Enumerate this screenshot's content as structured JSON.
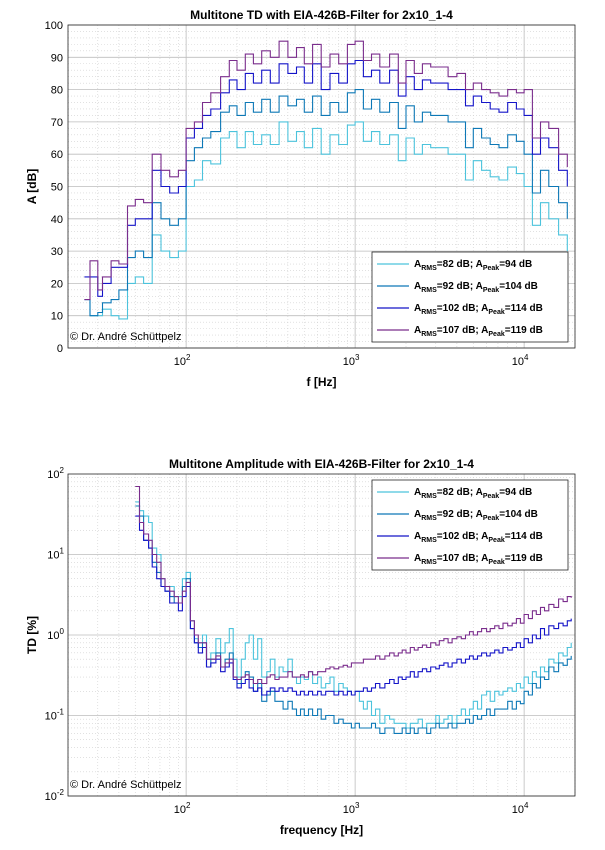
{
  "copyright": "© Dr. André Schüttpelz",
  "colors": {
    "s82": "#4cc3dc",
    "s92": "#0d78b6",
    "s102": "#1414c8",
    "s107": "#7a2d8c"
  },
  "chart_data": [
    {
      "type": "line",
      "title": "Multitone TD with EIA-426B-Filter for 2x10_1-4",
      "xlabel": "f [Hz]",
      "ylabel": "A [dB]",
      "xscale": "log",
      "xlim": [
        20,
        20000
      ],
      "ylim": [
        0,
        100
      ],
      "yticks": [
        0,
        10,
        20,
        30,
        40,
        50,
        60,
        70,
        80,
        90,
        100
      ],
      "xtick_labels": [
        {
          "base": "10",
          "exp": "2"
        },
        {
          "base": "10",
          "exp": "3"
        },
        {
          "base": "10",
          "exp": "4"
        }
      ],
      "grid": true,
      "legend_position": "lower-right",
      "x": [
        25,
        27,
        30,
        32,
        36,
        40,
        45,
        50,
        56,
        63,
        71,
        80,
        90,
        100,
        112,
        125,
        140,
        160,
        180,
        200,
        224,
        250,
        280,
        315,
        355,
        400,
        450,
        500,
        560,
        630,
        710,
        800,
        900,
        1000,
        1120,
        1250,
        1400,
        1600,
        1800,
        2000,
        2240,
        2500,
        2800,
        3150,
        3550,
        4000,
        4500,
        5000,
        5600,
        6300,
        7100,
        8000,
        9000,
        10000,
        11200,
        12500,
        14000,
        16000,
        18000
      ],
      "series": [
        {
          "name": "A_RMS=82 dB; A_Peak=94 dB",
          "legend": {
            "a": "A",
            "s1": "RMS",
            "m": "=82 dB; A",
            "s2": "Peak",
            "e": "=94 dB"
          },
          "color_key": "s82",
          "values": [
            15,
            10,
            10,
            12,
            10,
            9,
            20,
            22,
            20,
            35,
            30,
            28,
            30,
            50,
            52,
            58,
            57,
            65,
            67,
            62,
            67,
            63,
            66,
            63,
            70,
            64,
            67,
            62,
            68,
            60,
            66,
            63,
            69,
            70,
            64,
            67,
            63,
            66,
            58,
            65,
            60,
            63,
            62,
            62,
            60,
            60,
            52,
            58,
            55,
            53,
            52,
            56,
            54,
            50,
            38,
            45,
            40,
            35,
            30
          ]
        },
        {
          "name": "A_RMS=92 dB; A_Peak=104 dB",
          "legend": {
            "a": "A",
            "s1": "RMS",
            "m": "=92 dB; A",
            "s2": "Peak",
            "e": "=104 dB"
          },
          "color_key": "s92",
          "values": [
            15,
            10,
            11,
            14,
            15,
            18,
            28,
            30,
            28,
            45,
            40,
            38,
            40,
            58,
            62,
            65,
            67,
            73,
            75,
            72,
            76,
            73,
            77,
            73,
            78,
            75,
            77,
            73,
            78,
            72,
            76,
            73,
            79,
            80,
            74,
            77,
            73,
            76,
            68,
            75,
            70,
            73,
            72,
            72,
            70,
            70,
            62,
            68,
            65,
            63,
            62,
            66,
            64,
            60,
            48,
            55,
            50,
            45,
            40
          ]
        },
        {
          "name": "A_RMS=102 dB; A_Peak=114 dB",
          "legend": {
            "a": "A",
            "s1": "RMS",
            "m": "=102 dB; A",
            "s2": "Peak",
            "e": "=114 dB"
          },
          "color_key": "s102",
          "values": [
            22,
            22,
            16,
            20,
            25,
            25,
            38,
            40,
            40,
            55,
            50,
            48,
            50,
            65,
            68,
            72,
            74,
            79,
            83,
            80,
            85,
            82,
            86,
            82,
            88,
            85,
            87,
            82,
            88,
            80,
            85,
            82,
            88,
            89,
            84,
            86,
            82,
            86,
            78,
            84,
            80,
            83,
            82,
            82,
            80,
            80,
            75,
            78,
            76,
            74,
            73,
            76,
            74,
            72,
            60,
            65,
            62,
            55,
            50
          ]
        },
        {
          "name": "A_RMS=107 dB; A_Peak=119 dB",
          "legend": {
            "a": "A",
            "s1": "RMS",
            "m": "=107 dB; A",
            "s2": "Peak",
            "e": "=119 dB"
          },
          "color_key": "s107",
          "values": [
            15,
            27,
            18,
            22,
            27,
            26,
            44,
            46,
            45,
            60,
            55,
            53,
            55,
            68,
            70,
            76,
            79,
            84,
            89,
            86,
            91,
            88,
            92,
            90,
            95,
            90,
            93,
            88,
            94,
            87,
            91,
            88,
            94,
            95,
            89,
            91,
            87,
            91,
            82,
            89,
            85,
            88,
            87,
            87,
            84,
            85,
            80,
            82,
            80,
            79,
            78,
            80,
            79,
            80,
            65,
            70,
            68,
            60,
            56
          ]
        }
      ]
    },
    {
      "type": "line",
      "title": "Multitone Amplitude with EIA-426B-Filter for 2x10_1-4",
      "xlabel": "frequency [Hz]",
      "ylabel": "TD [%]",
      "xscale": "log",
      "yscale": "log",
      "xlim": [
        20,
        20000
      ],
      "ylim": [
        0.01,
        100
      ],
      "ytick_labels": [
        {
          "base": "10",
          "exp": "-2"
        },
        {
          "base": "10",
          "exp": "-1"
        },
        {
          "base": "10",
          "exp": "0"
        },
        {
          "base": "10",
          "exp": "1"
        },
        {
          "base": "10",
          "exp": "2"
        }
      ],
      "xtick_labels": [
        {
          "base": "10",
          "exp": "2"
        },
        {
          "base": "10",
          "exp": "3"
        },
        {
          "base": "10",
          "exp": "4"
        }
      ],
      "grid": true,
      "legend_position": "top-right",
      "x": [
        50,
        53,
        56,
        60,
        63,
        67,
        71,
        75,
        80,
        85,
        90,
        95,
        100,
        106,
        112,
        118,
        125,
        132,
        140,
        150,
        160,
        170,
        180,
        190,
        200,
        212,
        224,
        236,
        250,
        265,
        280,
        300,
        315,
        335,
        355,
        375,
        400,
        425,
        450,
        475,
        500,
        530,
        560,
        600,
        630,
        670,
        710,
        750,
        800,
        850,
        900,
        950,
        1000,
        1060,
        1120,
        1180,
        1250,
        1320,
        1400,
        1500,
        1600,
        1700,
        1800,
        1900,
        2000,
        2120,
        2240,
        2360,
        2500,
        2650,
        2800,
        3000,
        3150,
        3350,
        3550,
        3750,
        4000,
        4250,
        4500,
        4750,
        5000,
        5300,
        5600,
        6000,
        6300,
        6700,
        7100,
        7500,
        8000,
        8500,
        9000,
        9500,
        10000,
        10600,
        11200,
        11800,
        12500,
        13200,
        14000,
        15000,
        16000,
        17000,
        18000,
        19000
      ],
      "series": [
        {
          "name": "A_RMS=82 dB; A_Peak=94 dB",
          "legend": {
            "a": "A",
            "s1": "RMS",
            "m": "=82 dB; A",
            "s2": "Peak",
            "e": "=94 dB"
          },
          "color_key": "s82",
          "values": [
            45,
            35,
            30,
            25,
            12,
            10,
            5,
            4,
            4,
            3,
            3,
            5,
            6,
            1.5,
            0.9,
            0.8,
            1,
            0.5,
            0.6,
            0.9,
            0.6,
            0.8,
            1.2,
            0.5,
            0.3,
            0.5,
            0.8,
            1.0,
            0.5,
            0.9,
            0.3,
            0.35,
            0.5,
            0.3,
            0.4,
            0.35,
            0.5,
            0.3,
            0.25,
            0.3,
            0.28,
            0.35,
            0.25,
            0.3,
            0.22,
            0.25,
            0.3,
            0.2,
            0.25,
            0.22,
            0.2,
            0.18,
            0.2,
            0.15,
            0.12,
            0.15,
            0.1,
            0.12,
            0.08,
            0.1,
            0.09,
            0.08,
            0.08,
            0.08,
            0.07,
            0.08,
            0.08,
            0.09,
            0.07,
            0.08,
            0.08,
            0.1,
            0.08,
            0.09,
            0.1,
            0.08,
            0.1,
            0.12,
            0.1,
            0.12,
            0.15,
            0.12,
            0.18,
            0.2,
            0.15,
            0.2,
            0.18,
            0.2,
            0.22,
            0.2,
            0.25,
            0.22,
            0.3,
            0.25,
            0.35,
            0.3,
            0.4,
            0.35,
            0.5,
            0.45,
            0.6,
            0.55,
            0.7,
            0.8
          ]
        },
        {
          "name": "A_RMS=92 dB; A_Peak=104 dB",
          "legend": {
            "a": "A",
            "s1": "RMS",
            "m": "=92 dB; A",
            "s2": "Peak",
            "e": "=104 dB"
          },
          "color_key": "s92",
          "values": [
            40,
            30,
            15,
            12,
            8,
            6,
            4,
            3.5,
            3,
            2.5,
            2.5,
            4,
            5,
            1.2,
            0.8,
            0.7,
            0.8,
            0.4,
            0.5,
            0.6,
            0.4,
            0.5,
            0.6,
            0.3,
            0.25,
            0.3,
            0.35,
            0.3,
            0.2,
            0.25,
            0.15,
            0.18,
            0.2,
            0.15,
            0.15,
            0.12,
            0.15,
            0.12,
            0.1,
            0.12,
            0.1,
            0.12,
            0.1,
            0.12,
            0.09,
            0.1,
            0.1,
            0.08,
            0.09,
            0.08,
            0.08,
            0.07,
            0.08,
            0.07,
            0.07,
            0.07,
            0.08,
            0.07,
            0.06,
            0.07,
            0.07,
            0.06,
            0.06,
            0.07,
            0.06,
            0.07,
            0.06,
            0.07,
            0.07,
            0.06,
            0.07,
            0.08,
            0.07,
            0.07,
            0.08,
            0.07,
            0.08,
            0.08,
            0.09,
            0.08,
            0.1,
            0.09,
            0.1,
            0.12,
            0.1,
            0.12,
            0.12,
            0.12,
            0.15,
            0.12,
            0.15,
            0.14,
            0.2,
            0.18,
            0.25,
            0.22,
            0.3,
            0.28,
            0.4,
            0.35,
            0.45,
            0.42,
            0.5,
            0.55
          ]
        },
        {
          "name": "A_RMS=102 dB; A_Peak=114 dB",
          "legend": {
            "a": "A",
            "s1": "RMS",
            "m": "=102 dB; A",
            "s2": "Peak",
            "e": "=114 dB"
          },
          "color_key": "s102",
          "values": [
            30,
            20,
            15,
            12,
            7,
            5,
            4,
            3.5,
            2.5,
            2.5,
            2,
            3,
            4,
            1.2,
            0.8,
            0.6,
            0.7,
            0.4,
            0.45,
            0.5,
            0.35,
            0.4,
            0.45,
            0.28,
            0.22,
            0.25,
            0.28,
            0.22,
            0.2,
            0.22,
            0.18,
            0.2,
            0.22,
            0.2,
            0.22,
            0.2,
            0.22,
            0.2,
            0.18,
            0.2,
            0.18,
            0.2,
            0.18,
            0.2,
            0.18,
            0.2,
            0.2,
            0.18,
            0.2,
            0.18,
            0.2,
            0.18,
            0.2,
            0.2,
            0.22,
            0.2,
            0.22,
            0.25,
            0.22,
            0.25,
            0.28,
            0.25,
            0.3,
            0.28,
            0.3,
            0.35,
            0.3,
            0.35,
            0.38,
            0.35,
            0.4,
            0.38,
            0.42,
            0.45,
            0.4,
            0.45,
            0.5,
            0.45,
            0.5,
            0.55,
            0.5,
            0.55,
            0.6,
            0.55,
            0.6,
            0.65,
            0.6,
            0.7,
            0.65,
            0.7,
            0.8,
            0.7,
            0.9,
            0.8,
            1.0,
            0.9,
            1.2,
            1.0,
            1.3,
            1.2,
            1.4,
            1.3,
            1.5,
            1.6
          ]
        },
        {
          "name": "A_RMS=107 dB; A_Peak=119 dB",
          "legend": {
            "a": "A",
            "s1": "RMS",
            "m": "=107 dB; A",
            "s2": "Peak",
            "e": "=119 dB"
          },
          "color_key": "s107",
          "values": [
            70,
            25,
            18,
            15,
            10,
            8,
            5,
            4,
            3.5,
            3,
            2.5,
            3.5,
            4.5,
            1.5,
            1.0,
            0.8,
            0.8,
            0.5,
            0.5,
            0.55,
            0.4,
            0.45,
            0.5,
            0.3,
            0.28,
            0.3,
            0.32,
            0.28,
            0.25,
            0.28,
            0.25,
            0.3,
            0.32,
            0.28,
            0.3,
            0.3,
            0.35,
            0.3,
            0.3,
            0.32,
            0.3,
            0.35,
            0.32,
            0.35,
            0.35,
            0.38,
            0.4,
            0.38,
            0.4,
            0.42,
            0.4,
            0.45,
            0.45,
            0.45,
            0.5,
            0.5,
            0.5,
            0.55,
            0.5,
            0.55,
            0.6,
            0.55,
            0.6,
            0.65,
            0.6,
            0.7,
            0.65,
            0.7,
            0.75,
            0.7,
            0.8,
            0.75,
            0.85,
            0.9,
            0.8,
            0.9,
            0.95,
            0.9,
            1.0,
            1.1,
            1.0,
            1.1,
            1.2,
            1.1,
            1.2,
            1.3,
            1.2,
            1.4,
            1.3,
            1.4,
            1.6,
            1.4,
            1.8,
            1.6,
            2.0,
            1.8,
            2.2,
            2.0,
            2.4,
            2.2,
            2.8,
            2.6,
            3.0,
            2.9
          ]
        }
      ]
    }
  ]
}
